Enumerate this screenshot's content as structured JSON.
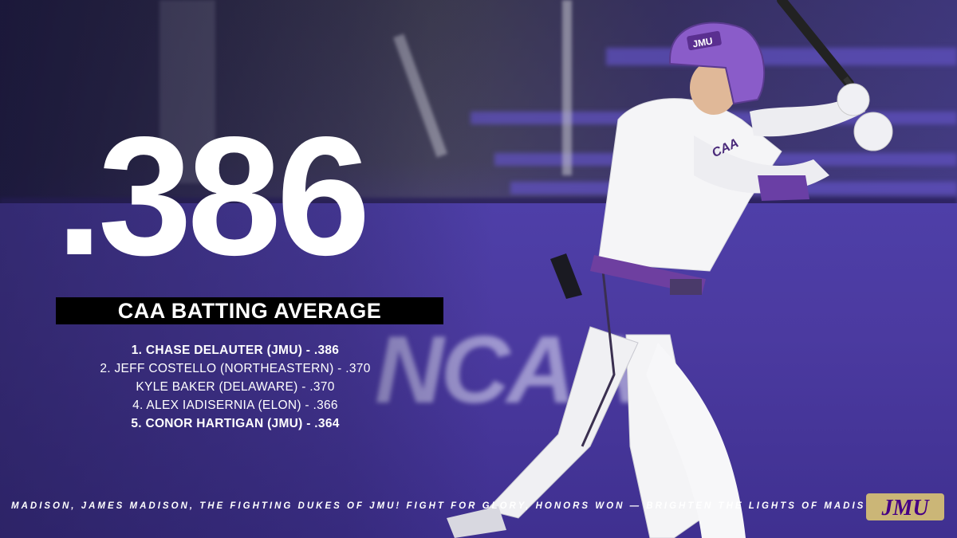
{
  "stat": {
    "value": ".386",
    "label": "CAA BATTING AVERAGE"
  },
  "leaders": [
    {
      "text": "1. CHASE DELAUTER (JMU) - .386",
      "school": "JMU"
    },
    {
      "text": "2. JEFF COSTELLO (NORTHEASTERN) - .370",
      "school": "NORTHEASTERN"
    },
    {
      "text": "KYLE BAKER (DELAWARE) - .370",
      "school": "DELAWARE"
    },
    {
      "text": "4. ALEX IADISERNIA (ELON) - .366",
      "school": "ELON"
    },
    {
      "text": "5. CONOR HARTIGAN (JMU) - .364",
      "school": "JMU"
    }
  ],
  "background": {
    "wall_text": "NCAA"
  },
  "uniform": {
    "helmet_logo": "JMU",
    "chest_text": "CAA"
  },
  "footer": {
    "fight_song": "MADISON, JAMES MADISON, THE FIGHTING DUKES OF JMU! FIGHT FOR GLORY, HONORS WON — BRIGHTEN THE LIGHTS OF MADISON",
    "logo_text": "JMU"
  },
  "colors": {
    "purple": "#450084",
    "gold": "#cbb677",
    "wall": "#4b3aa0",
    "banner": "#000000",
    "text": "#ffffff"
  }
}
